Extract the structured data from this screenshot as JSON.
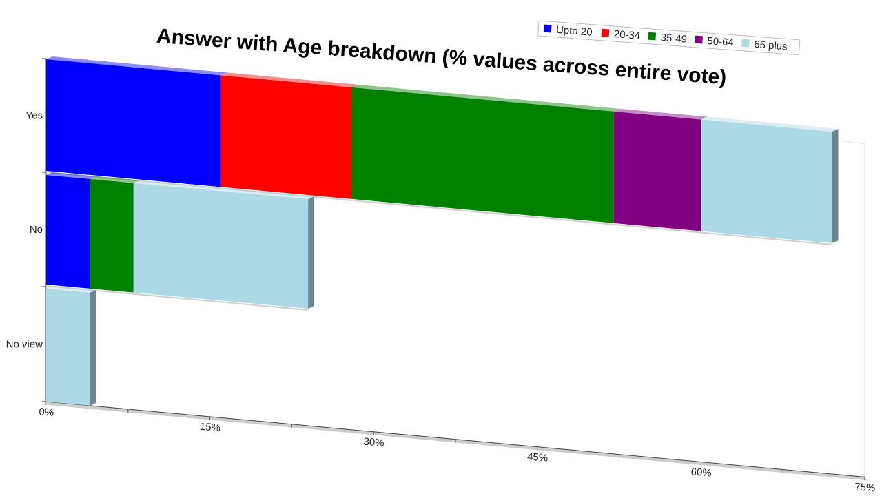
{
  "chart_data": {
    "type": "bar",
    "orientation": "horizontal",
    "stacked": true,
    "title": "Answer with Age breakdown (% values across entire vote)",
    "categories": [
      "Yes",
      "No",
      "No view"
    ],
    "x_ticks": [
      "0%",
      "15%",
      "30%",
      "45%",
      "60%",
      "75%"
    ],
    "xlim": [
      0,
      75
    ],
    "legend_position": "top-right",
    "series": [
      {
        "name": "Upto 20",
        "color": "#0000ff",
        "values": [
          16,
          4,
          0
        ]
      },
      {
        "name": "20-34",
        "color": "#ff0000",
        "values": [
          12,
          0,
          0
        ]
      },
      {
        "name": "35-49",
        "color": "#008000",
        "values": [
          24,
          4,
          0
        ]
      },
      {
        "name": "50-64",
        "color": "#800080",
        "values": [
          8,
          0,
          0
        ]
      },
      {
        "name": "65 plus",
        "color": "#add8e6",
        "values": [
          12,
          16,
          4
        ]
      }
    ]
  }
}
